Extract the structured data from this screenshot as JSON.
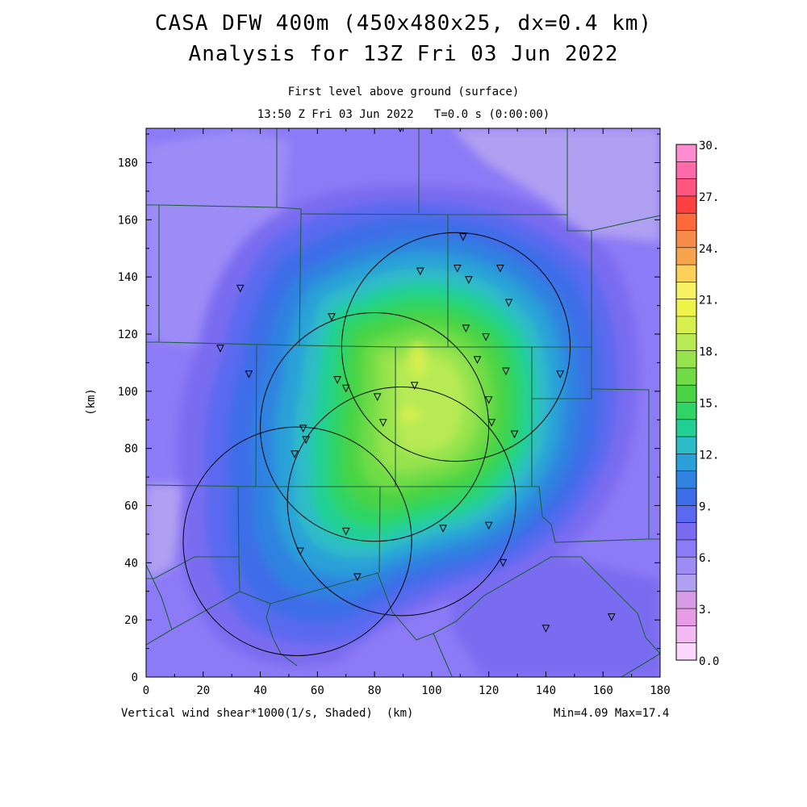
{
  "header": {
    "title_line1": "CASA DFW 400m (450x480x25, dx=0.4 km)",
    "title_line2": "Analysis for 13Z Fri 03 Jun 2022",
    "subtitle_line1": "First level above ground (surface)",
    "subtitle_line2": "13:50 Z Fri 03 Jun 2022   T=0.0 s (0:00:00)"
  },
  "footer": {
    "variable_label": "Vertical wind shear*1000(1/s, Shaded)  (km)",
    "minmax": "Min=4.09 Max=17.4"
  },
  "map": {
    "x_axis": {
      "range": [
        0,
        180
      ],
      "ticks": [
        "0",
        "20",
        "40",
        "60",
        "80",
        "100",
        "120",
        "140",
        "160",
        "180"
      ]
    },
    "y_axis": {
      "label": "(km)",
      "range": [
        0,
        192
      ],
      "ticks": [
        "0",
        "20",
        "40",
        "60",
        "80",
        "100",
        "120",
        "140",
        "160",
        "180"
      ]
    },
    "field": {
      "min": 4.09,
      "max": 17.4,
      "peak_location_km": [
        93,
        100
      ]
    },
    "radar_rings": [
      {
        "center_km": [
          108.5,
          115.5
        ],
        "radius_km": 40
      },
      {
        "center_km": [
          80.0,
          87.5
        ],
        "radius_km": 40
      },
      {
        "center_km": [
          89.5,
          61.5
        ],
        "radius_km": 40
      },
      {
        "center_km": [
          53.0,
          47.5
        ],
        "radius_km": 40
      }
    ],
    "stations_km": [
      [
        89,
        192
      ],
      [
        111,
        154
      ],
      [
        96,
        142
      ],
      [
        109,
        143
      ],
      [
        113,
        139
      ],
      [
        124,
        143
      ],
      [
        127,
        131
      ],
      [
        33,
        136
      ],
      [
        65,
        126
      ],
      [
        112,
        122
      ],
      [
        119,
        119
      ],
      [
        26,
        115
      ],
      [
        116,
        111
      ],
      [
        126,
        107
      ],
      [
        145,
        106
      ],
      [
        36,
        106
      ],
      [
        67,
        104
      ],
      [
        70,
        101
      ],
      [
        94,
        102
      ],
      [
        81,
        98
      ],
      [
        120,
        97
      ],
      [
        83,
        89
      ],
      [
        121,
        89
      ],
      [
        129,
        85
      ],
      [
        55,
        87
      ],
      [
        56,
        83
      ],
      [
        52,
        78
      ],
      [
        104,
        52
      ],
      [
        120,
        53
      ],
      [
        70,
        51
      ],
      [
        54,
        44
      ],
      [
        125,
        40
      ],
      [
        74,
        35
      ],
      [
        140,
        17
      ],
      [
        163,
        21
      ]
    ]
  },
  "colorbar": {
    "labels": [
      "30.",
      "27.",
      "24.",
      "21.",
      "18.",
      "15.",
      "12.",
      "9.",
      "6.",
      "3.",
      "0.0"
    ],
    "colors_top_to_bottom": [
      "#ff8ccf",
      "#ff6aa8",
      "#ff557f",
      "#ff4040",
      "#ff6a3c",
      "#f78b4a",
      "#f7a54c",
      "#fdd05a",
      "#f7f261",
      "#eef44a",
      "#d7f04e",
      "#b7ea54",
      "#96e34e",
      "#6fdc46",
      "#48d444",
      "#2fd464",
      "#22d095",
      "#2dbcc7",
      "#2ba0d8",
      "#2f82e0",
      "#3c6de8",
      "#5a6af0",
      "#7a6cf0",
      "#8c7af6",
      "#9d8cf6",
      "#b0a0f2",
      "#d79ae4",
      "#e69be4",
      "#f1baf1",
      "#fbd8fb"
    ]
  }
}
